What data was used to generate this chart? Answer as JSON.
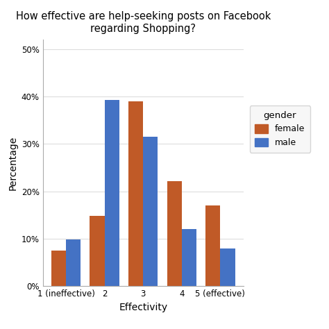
{
  "title": "How effective are help-seeking posts on Facebook\nregarding Shopping?",
  "xlabel": "Effectivity",
  "ylabel": "Percentage",
  "categories": [
    "1 (ineffective)",
    "2",
    "3",
    "4",
    "5 (effective)"
  ],
  "female_values": [
    0.075,
    0.148,
    0.39,
    0.222,
    0.17
  ],
  "male_values": [
    0.098,
    0.393,
    0.315,
    0.12,
    0.08
  ],
  "female_color": "#C05A27",
  "male_color": "#4472C4",
  "legend_title": "gender",
  "legend_labels": [
    "female",
    "male"
  ],
  "ylim": [
    0,
    0.52
  ],
  "yticks": [
    0.0,
    0.1,
    0.2,
    0.3,
    0.4,
    0.5
  ],
  "ytick_labels": [
    "0%",
    "10%",
    "20%",
    "30%",
    "40%",
    "50%"
  ],
  "background_color": "#FFFFFF",
  "panel_background": "#FFFFFF",
  "grid_color": "#DDDDDD",
  "bar_width": 0.38,
  "title_fontsize": 10.5,
  "axis_label_fontsize": 10,
  "tick_fontsize": 8.5,
  "legend_fontsize": 9,
  "legend_title_fontsize": 9.5
}
